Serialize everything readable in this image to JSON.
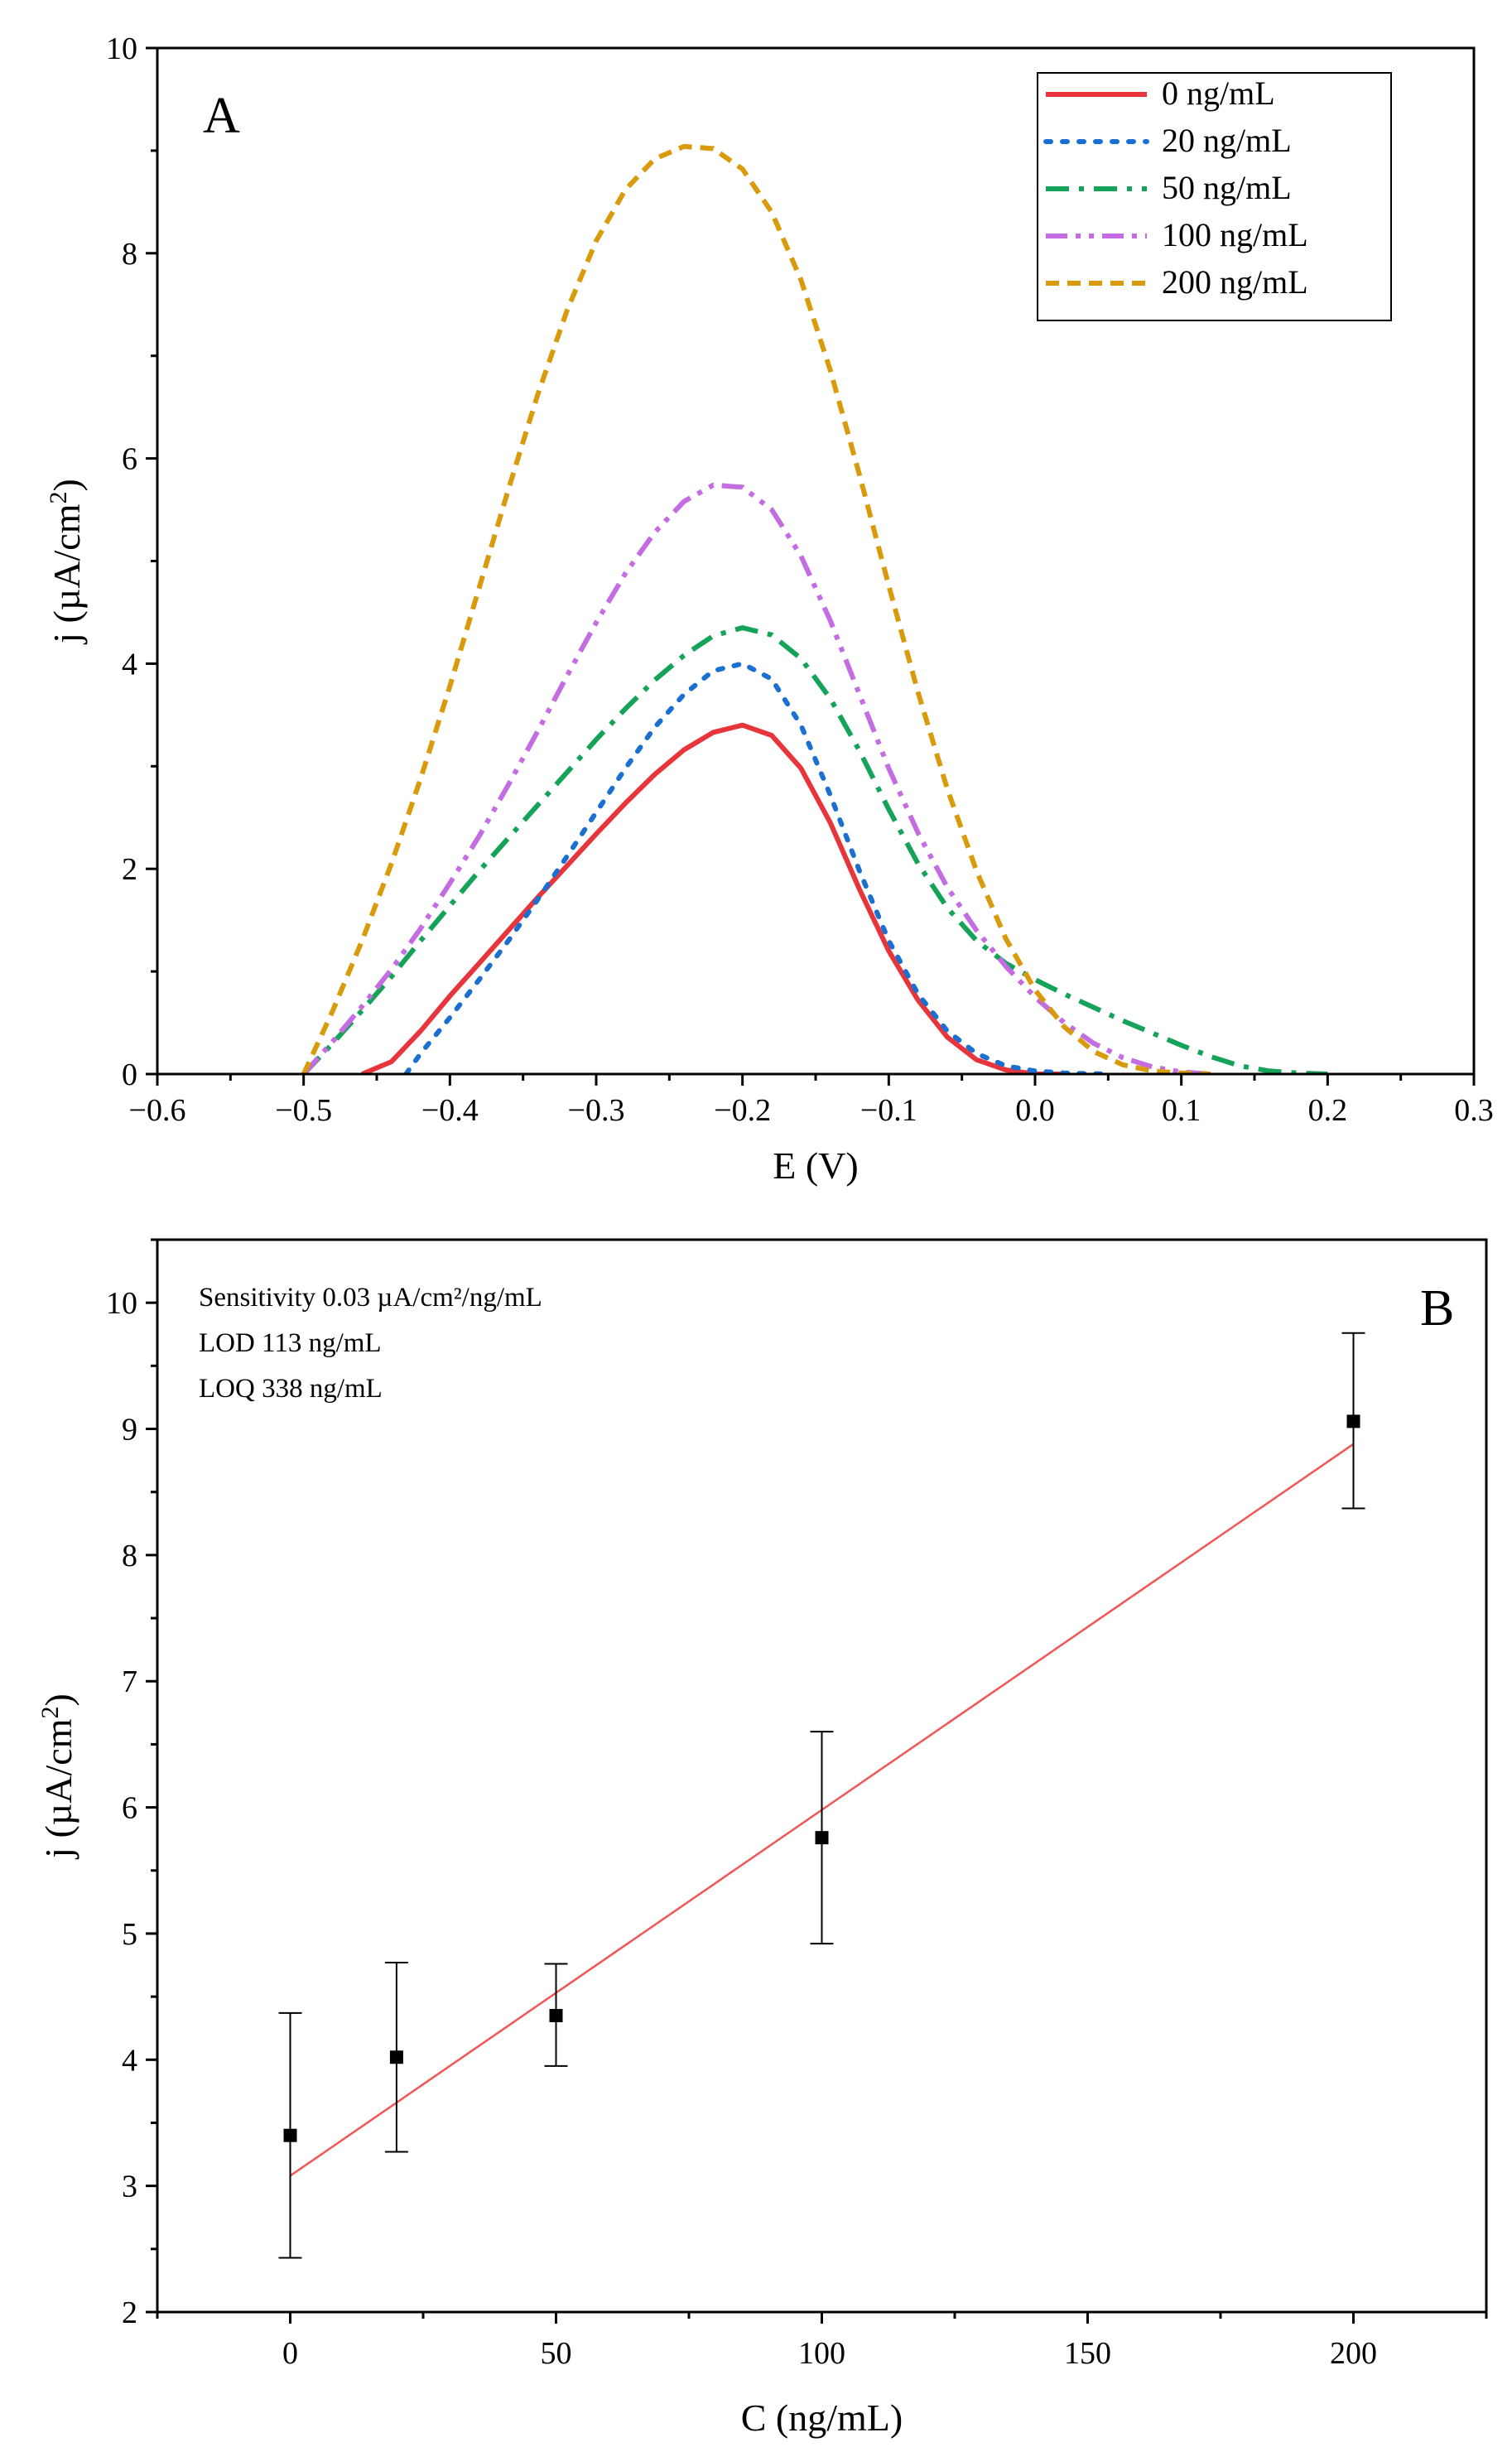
{
  "chart_data": [
    {
      "type": "line",
      "panel_label": "A",
      "xlabel": "E (V)",
      "ylabel_main": "j (µA/cm",
      "ylabel_sup": "2",
      "ylabel_end": ")",
      "xlim": [
        -0.6,
        0.3
      ],
      "ylim": [
        0,
        10
      ],
      "x_ticks": [
        "−0.6",
        "−0.5",
        "−0.4",
        "−0.3",
        "−0.2",
        "−0.1",
        "0.0",
        "0.1",
        "0.2",
        "0.3"
      ],
      "x_tick_values": [
        -0.6,
        -0.5,
        -0.4,
        -0.3,
        -0.2,
        -0.1,
        0.0,
        0.1,
        0.2,
        0.3
      ],
      "y_ticks": [
        "0",
        "2",
        "4",
        "6",
        "8",
        "10"
      ],
      "y_tick_values": [
        0,
        2,
        4,
        6,
        8,
        10
      ],
      "legend_position": "top-right",
      "grid": false,
      "series": [
        {
          "name": "0 ng/mL",
          "color": "#e8353b",
          "dash": "solid",
          "x": [
            -0.46,
            -0.44,
            -0.42,
            -0.4,
            -0.38,
            -0.36,
            -0.34,
            -0.32,
            -0.3,
            -0.28,
            -0.26,
            -0.24,
            -0.22,
            -0.2,
            -0.18,
            -0.16,
            -0.14,
            -0.12,
            -0.1,
            -0.08,
            -0.06,
            -0.04,
            -0.02,
            0.0,
            0.02
          ],
          "y": [
            0.0,
            0.12,
            0.42,
            0.76,
            1.08,
            1.4,
            1.72,
            2.03,
            2.34,
            2.64,
            2.92,
            3.16,
            3.33,
            3.4,
            3.3,
            2.98,
            2.45,
            1.8,
            1.2,
            0.72,
            0.36,
            0.14,
            0.04,
            0.0,
            0.0
          ]
        },
        {
          "name": "20 ng/mL",
          "color": "#1a6fd0",
          "dash": "dotted",
          "x": [
            -0.43,
            -0.42,
            -0.4,
            -0.38,
            -0.36,
            -0.34,
            -0.32,
            -0.3,
            -0.28,
            -0.26,
            -0.24,
            -0.22,
            -0.2,
            -0.18,
            -0.16,
            -0.14,
            -0.12,
            -0.1,
            -0.08,
            -0.06,
            -0.04,
            -0.02,
            0.0,
            0.02,
            0.05
          ],
          "y": [
            0.0,
            0.2,
            0.55,
            0.92,
            1.3,
            1.7,
            2.12,
            2.55,
            2.98,
            3.38,
            3.7,
            3.93,
            4.0,
            3.85,
            3.4,
            2.72,
            1.98,
            1.3,
            0.78,
            0.42,
            0.2,
            0.08,
            0.03,
            0.01,
            0.0
          ]
        },
        {
          "name": "50 ng/mL",
          "color": "#15a35a",
          "dash": "dashdot",
          "x": [
            -0.5,
            -0.48,
            -0.46,
            -0.44,
            -0.42,
            -0.4,
            -0.38,
            -0.36,
            -0.34,
            -0.32,
            -0.3,
            -0.28,
            -0.26,
            -0.24,
            -0.22,
            -0.2,
            -0.18,
            -0.16,
            -0.14,
            -0.12,
            -0.1,
            -0.08,
            -0.06,
            -0.04,
            -0.02,
            0.0,
            0.02,
            0.04,
            0.06,
            0.08,
            0.1,
            0.12,
            0.14,
            0.16,
            0.18,
            0.2
          ],
          "y": [
            0.0,
            0.3,
            0.62,
            0.95,
            1.3,
            1.64,
            1.98,
            2.3,
            2.62,
            2.94,
            3.26,
            3.56,
            3.84,
            4.08,
            4.27,
            4.35,
            4.28,
            4.05,
            3.66,
            3.15,
            2.58,
            2.05,
            1.62,
            1.3,
            1.08,
            0.92,
            0.78,
            0.65,
            0.52,
            0.4,
            0.28,
            0.17,
            0.08,
            0.03,
            0.01,
            0.0
          ]
        },
        {
          "name": "100 ng/mL",
          "color": "#c46ce2",
          "dash": "dashdotdot",
          "x": [
            -0.5,
            -0.48,
            -0.46,
            -0.44,
            -0.42,
            -0.4,
            -0.38,
            -0.36,
            -0.34,
            -0.32,
            -0.3,
            -0.28,
            -0.26,
            -0.24,
            -0.22,
            -0.2,
            -0.18,
            -0.16,
            -0.14,
            -0.12,
            -0.1,
            -0.08,
            -0.06,
            -0.04,
            -0.02,
            0.0,
            0.02,
            0.04,
            0.06,
            0.08,
            0.1,
            0.12
          ],
          "y": [
            0.0,
            0.32,
            0.66,
            1.02,
            1.42,
            1.86,
            2.32,
            2.82,
            3.34,
            3.88,
            4.4,
            4.88,
            5.28,
            5.58,
            5.74,
            5.72,
            5.5,
            5.05,
            4.42,
            3.7,
            2.98,
            2.35,
            1.82,
            1.4,
            1.05,
            0.75,
            0.5,
            0.3,
            0.16,
            0.07,
            0.02,
            0.0
          ]
        },
        {
          "name": "200 ng/mL",
          "color": "#d99a0c",
          "dash": "dashed",
          "x": [
            -0.5,
            -0.48,
            -0.46,
            -0.44,
            -0.42,
            -0.4,
            -0.38,
            -0.36,
            -0.34,
            -0.32,
            -0.3,
            -0.28,
            -0.26,
            -0.24,
            -0.22,
            -0.2,
            -0.18,
            -0.16,
            -0.14,
            -0.12,
            -0.1,
            -0.08,
            -0.06,
            -0.04,
            -0.02,
            0.0,
            0.02,
            0.04,
            0.06,
            0.08,
            0.1,
            0.12
          ],
          "y": [
            0.0,
            0.62,
            1.3,
            2.05,
            2.88,
            3.78,
            4.74,
            5.7,
            6.62,
            7.44,
            8.12,
            8.62,
            8.92,
            9.04,
            9.02,
            8.82,
            8.4,
            7.74,
            6.86,
            5.84,
            4.76,
            3.72,
            2.78,
            1.98,
            1.32,
            0.82,
            0.46,
            0.22,
            0.09,
            0.03,
            0.01,
            0.0
          ]
        }
      ]
    },
    {
      "type": "scatter",
      "panel_label": "B",
      "xlabel": "C (ng/mL)",
      "ylabel_main": "j (µA/cm",
      "ylabel_sup": "2",
      "ylabel_end": ")",
      "xlim": [
        -25,
        225
      ],
      "ylim": [
        2,
        10.5
      ],
      "x_ticks": [
        "0",
        "50",
        "100",
        "150",
        "200"
      ],
      "x_tick_values": [
        0,
        50,
        100,
        150,
        200
      ],
      "y_ticks": [
        "2",
        "3",
        "4",
        "5",
        "6",
        "7",
        "8",
        "9",
        "10"
      ],
      "y_tick_values": [
        2,
        3,
        4,
        5,
        6,
        7,
        8,
        9,
        10
      ],
      "grid": false,
      "annotations": [
        "Sensitivity 0.03 µA/cm²/ng/mL",
        "LOD 113 ng/mL",
        "LOQ 338 ng/mL"
      ],
      "points": {
        "x": [
          0,
          20,
          50,
          100,
          200
        ],
        "y": [
          3.4,
          4.02,
          4.35,
          5.76,
          9.06
        ],
        "err_low": [
          2.43,
          3.27,
          3.95,
          4.92,
          8.37
        ],
        "err_high": [
          4.37,
          4.77,
          4.76,
          6.6,
          9.76
        ],
        "color": "#000000"
      },
      "fit_line": {
        "x": [
          0,
          200
        ],
        "y": [
          3.08,
          8.88
        ],
        "color": "#f25555"
      }
    }
  ]
}
